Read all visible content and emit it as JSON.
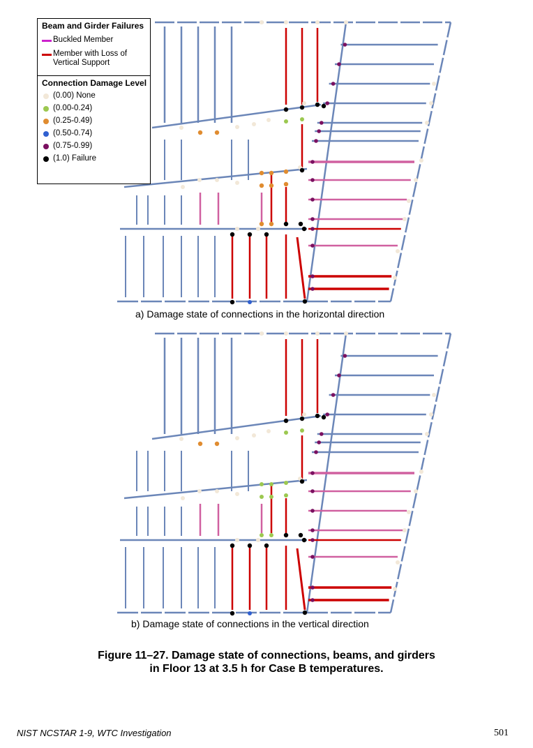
{
  "legend": {
    "failures_title": "Beam and Girder Failures",
    "buckled": "Buckled Member",
    "loss_support_line1": "Member with Loss of",
    "loss_support_line2": "Vertical Support",
    "damage_title": "Connection Damage Level",
    "levels": [
      {
        "label": "(0.00) None",
        "color": "#f2e8d8"
      },
      {
        "label": "(0.00-0.24)",
        "color": "#9cc850"
      },
      {
        "label": "(0.25-0.49)",
        "color": "#e08c30"
      },
      {
        "label": "(0.50-0.74)",
        "color": "#3060d0"
      },
      {
        "label": "(0.75-0.99)",
        "color": "#7a1060"
      },
      {
        "label": "(1.0) Failure",
        "color": "#000000"
      }
    ]
  },
  "colors": {
    "member": "#6b86b8",
    "buckled": "#d060a0",
    "legend_buckled": "#cc22cc",
    "loss_support": "#cc0000"
  },
  "captions": {
    "a": "a) Damage state of connections in the horizontal direction",
    "b": "b) Damage state of connections in the vertical direction"
  },
  "figure_title": {
    "line1": "Figure 11–27. Damage state of connections, beams, and girders",
    "line2": "in Floor 13 at 3.5 h for Case B temperatures."
  },
  "footer": {
    "left": "NIST NCSTAR 1-9, WTC Investigation",
    "page": "501"
  },
  "plans": [
    {
      "id": "a",
      "orange": [
        [
          287,
          190
        ],
        [
          311,
          190
        ],
        [
          375,
          248
        ],
        [
          389,
          248
        ],
        [
          410,
          246
        ],
        [
          375,
          266
        ],
        [
          389,
          266
        ],
        [
          410,
          264
        ],
        [
          375,
          321
        ],
        [
          389,
          321
        ]
      ],
      "green": [
        [
          410,
          174
        ],
        [
          433,
          171
        ]
      ],
      "blue": [
        [
          358,
          433
        ]
      ]
    },
    {
      "id": "b",
      "orange": [
        [
          287,
          636
        ],
        [
          311,
          636
        ]
      ],
      "green": [
        [
          410,
          620
        ],
        [
          433,
          617
        ],
        [
          375,
          694
        ],
        [
          389,
          694
        ],
        [
          410,
          692
        ],
        [
          375,
          712
        ],
        [
          389,
          712
        ],
        [
          410,
          710
        ],
        [
          375,
          767
        ],
        [
          389,
          767
        ]
      ],
      "blue": [
        [
          358,
          879
        ]
      ]
    }
  ]
}
